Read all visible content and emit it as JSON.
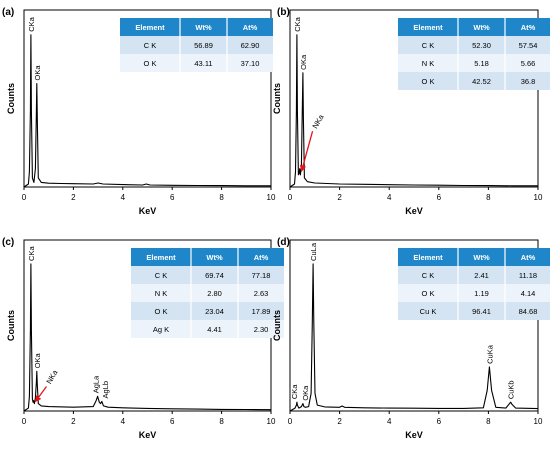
{
  "panels": [
    {
      "label": "(a)",
      "xlabel": "KeV",
      "ylabel": "Counts",
      "xlim": [
        0,
        10
      ],
      "xticks": [
        "0",
        "2",
        "4",
        "6",
        "8",
        "10"
      ],
      "peak_labels": [
        {
          "text": "CKa",
          "x": 0.28
        },
        {
          "text": "OKa",
          "x": 0.52
        }
      ],
      "table": {
        "headers": [
          "Element",
          "Wt%",
          "At%"
        ],
        "rows": [
          [
            "C  K",
            "56.89",
            "62.90"
          ],
          [
            "O  K",
            "43.11",
            "37.10"
          ]
        ]
      }
    },
    {
      "label": "(b)",
      "xlabel": "KeV",
      "ylabel": "Counts",
      "xlim": [
        0,
        10
      ],
      "xticks": [
        "0",
        "2",
        "4",
        "6",
        "8",
        "10"
      ],
      "peak_labels": [
        {
          "text": "CKa",
          "x": 0.28
        },
        {
          "text": "OKa",
          "x": 0.52
        },
        {
          "text": "NKa",
          "x": 0.39
        }
      ],
      "table": {
        "headers": [
          "Element",
          "Wt%",
          "At%"
        ],
        "rows": [
          [
            "C  K",
            "52.30",
            "57.54"
          ],
          [
            "N  K",
            "5.18",
            "5.66"
          ],
          [
            "O  K",
            "42.52",
            "36.8"
          ]
        ]
      }
    },
    {
      "label": "(c)",
      "xlabel": "KeV",
      "ylabel": "Counts",
      "xlim": [
        0,
        10
      ],
      "xticks": [
        "0",
        "2",
        "4",
        "6",
        "8",
        "10"
      ],
      "peak_labels": [
        {
          "text": "CKa",
          "x": 0.28
        },
        {
          "text": "OKa",
          "x": 0.52
        },
        {
          "text": "NKa",
          "x": 0.39
        },
        {
          "text": "AgLa",
          "x": 2.98
        },
        {
          "text": "AgLb",
          "x": 3.15
        }
      ],
      "table": {
        "headers": [
          "Element",
          "Wt%",
          "At%"
        ],
        "rows": [
          [
            "C  K",
            "69.74",
            "77.18"
          ],
          [
            "N  K",
            "2.80",
            "2.63"
          ],
          [
            "O  K",
            "23.04",
            "17.89"
          ],
          [
            "Ag K",
            "4.41",
            "2.30"
          ]
        ]
      }
    },
    {
      "label": "(d)",
      "xlabel": "KeV",
      "ylabel": "Counts",
      "xlim": [
        0,
        10
      ],
      "xticks": [
        "0",
        "2",
        "4",
        "6",
        "8",
        "10"
      ],
      "peak_labels": [
        {
          "text": "CKa",
          "x": 0.28
        },
        {
          "text": "OKa",
          "x": 0.52
        },
        {
          "text": "CuLa",
          "x": 0.93
        },
        {
          "text": "CuKa",
          "x": 8.04
        },
        {
          "text": "CuKb",
          "x": 8.9
        }
      ],
      "table": {
        "headers": [
          "Element",
          "Wt%",
          "At%"
        ],
        "rows": [
          [
            "C  K",
            "2.41",
            "11.18"
          ],
          [
            "O  K",
            "1.19",
            "4.14"
          ],
          [
            "Cu K",
            "96.41",
            "84.68"
          ]
        ]
      }
    }
  ],
  "chart_data": [
    {
      "type": "line",
      "xlim": [
        0,
        10
      ],
      "ylim": [
        0,
        100
      ],
      "series": [
        {
          "x": [
            0,
            0.18,
            0.22,
            0.26,
            0.28,
            0.3,
            0.34,
            0.4,
            0.46,
            0.5,
            0.52,
            0.54,
            0.58,
            0.7,
            1.0,
            1.5,
            2.0,
            2.8,
            3.0,
            3.2,
            4.0,
            4.8,
            4.95,
            5.1,
            6.0,
            7.0,
            8.0,
            9.0,
            10.0
          ],
          "y": [
            0,
            2,
            10,
            50,
            100,
            50,
            6,
            3,
            12,
            50,
            68,
            45,
            6,
            3,
            2.5,
            2.3,
            2.2,
            2.0,
            2.6,
            2.0,
            1.6,
            1.3,
            2.0,
            1.3,
            1.1,
            1.0,
            0.9,
            0.8,
            0.8
          ]
        }
      ],
      "colors": {
        "line": "#000000",
        "arrow": "#e8141a"
      }
    },
    {
      "type": "line",
      "xlim": [
        0,
        10
      ],
      "ylim": [
        0,
        100
      ],
      "series": [
        {
          "x": [
            0,
            0.18,
            0.22,
            0.26,
            0.28,
            0.3,
            0.34,
            0.37,
            0.39,
            0.42,
            0.46,
            0.5,
            0.52,
            0.54,
            0.58,
            0.7,
            1.0,
            2.0,
            3.0,
            4.0,
            5.0,
            6.0,
            7.0,
            8.0,
            9.0,
            10.0
          ],
          "y": [
            0,
            2,
            10,
            50,
            100,
            50,
            8,
            9,
            12,
            8,
            14,
            55,
            75,
            45,
            6,
            3.5,
            2.6,
            2.0,
            1.8,
            1.5,
            1.3,
            1.2,
            1.0,
            0.9,
            0.8,
            0.8
          ]
        }
      ],
      "colors": {
        "line": "#000000",
        "arrow": "#e8141a"
      }
    },
    {
      "type": "line",
      "xlim": [
        0,
        10
      ],
      "ylim": [
        0,
        100
      ],
      "series": [
        {
          "x": [
            0,
            0.18,
            0.22,
            0.26,
            0.28,
            0.3,
            0.34,
            0.37,
            0.39,
            0.42,
            0.46,
            0.5,
            0.52,
            0.54,
            0.58,
            0.7,
            1.0,
            2.0,
            2.8,
            2.92,
            2.98,
            3.05,
            3.1,
            3.15,
            3.22,
            3.4,
            4.0,
            5.0,
            6.0,
            7.0,
            8.0,
            9.0,
            10.0
          ],
          "y": [
            0,
            2,
            10,
            55,
            100,
            55,
            8,
            6,
            7,
            5,
            9,
            20,
            27,
            18,
            5,
            3.5,
            3.0,
            2.6,
            3.0,
            7,
            10,
            6,
            5,
            6.5,
            3.5,
            2.6,
            2.2,
            1.8,
            1.5,
            1.3,
            1.1,
            1.0,
            0.9
          ]
        }
      ],
      "colors": {
        "line": "#000000",
        "arrow": "#e8141a"
      }
    },
    {
      "type": "line",
      "xlim": [
        0,
        10
      ],
      "ylim": [
        0,
        100
      ],
      "series": [
        {
          "x": [
            0,
            0.2,
            0.26,
            0.28,
            0.3,
            0.36,
            0.46,
            0.52,
            0.56,
            0.62,
            0.75,
            0.85,
            0.9,
            0.93,
            0.96,
            1.01,
            1.1,
            1.4,
            2.0,
            2.1,
            2.2,
            3.0,
            4.0,
            5.0,
            6.0,
            7.0,
            7.8,
            7.95,
            8.04,
            8.13,
            8.3,
            8.7,
            8.85,
            8.9,
            8.95,
            9.1,
            10.0
          ],
          "y": [
            0,
            2,
            4,
            6,
            4,
            2,
            3,
            5,
            3,
            2.5,
            3,
            12,
            60,
            100,
            60,
            12,
            4,
            2.8,
            2.5,
            3.4,
            2.5,
            2.2,
            2.0,
            1.9,
            1.8,
            1.8,
            2.2,
            14,
            30,
            14,
            2.5,
            2.0,
            5,
            6,
            4.5,
            2.0,
            1.6
          ]
        }
      ],
      "colors": {
        "line": "#000000"
      }
    }
  ]
}
